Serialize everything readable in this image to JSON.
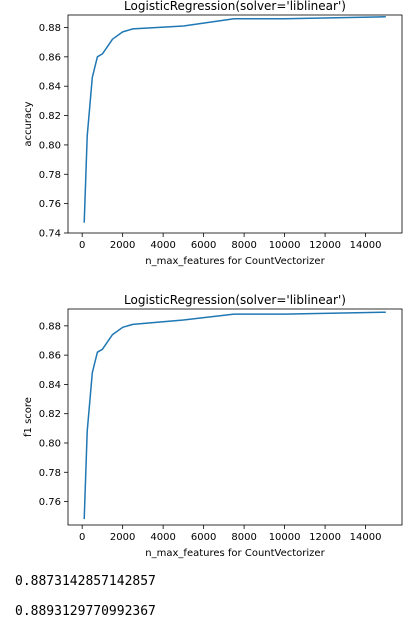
{
  "chart_data": [
    {
      "type": "line",
      "title": "LogisticRegression(solver='liblinear')",
      "xlabel": "n_max_features for CountVectorizer",
      "ylabel": "accuracy",
      "x_ticks": [
        0,
        2000,
        4000,
        6000,
        8000,
        10000,
        12000,
        14000
      ],
      "y_ticks": [
        0.74,
        0.76,
        0.78,
        0.8,
        0.82,
        0.84,
        0.86,
        0.88
      ],
      "x_tick_labels": [
        "0",
        "2000",
        "4000",
        "6000",
        "8000",
        "10000",
        "12000",
        "14000"
      ],
      "y_tick_labels": [
        "0.74",
        "0.76",
        "0.78",
        "0.80",
        "0.82",
        "0.84",
        "0.86",
        "0.88"
      ],
      "xlim": [
        -700,
        15800
      ],
      "ylim": [
        0.74,
        0.8885
      ],
      "color": "#1f77b4",
      "series": [
        {
          "x": [
            100,
            250,
            500,
            750,
            1000,
            1500,
            2000,
            2500,
            5000,
            7500,
            10000,
            15000
          ],
          "y": [
            0.747,
            0.806,
            0.846,
            0.86,
            0.862,
            0.872,
            0.877,
            0.879,
            0.881,
            0.886,
            0.886,
            0.8873
          ]
        }
      ]
    },
    {
      "type": "line",
      "title": "LogisticRegression(solver='liblinear')",
      "xlabel": "n_max_features for CountVectorizer",
      "ylabel": "f1 score",
      "x_ticks": [
        0,
        2000,
        4000,
        6000,
        8000,
        10000,
        12000,
        14000
      ],
      "y_ticks": [
        0.76,
        0.78,
        0.8,
        0.82,
        0.84,
        0.86,
        0.88
      ],
      "x_tick_labels": [
        "0",
        "2000",
        "4000",
        "6000",
        "8000",
        "10000",
        "12000",
        "14000"
      ],
      "y_tick_labels": [
        "0.76",
        "0.78",
        "0.80",
        "0.82",
        "0.84",
        "0.86",
        "0.88"
      ],
      "xlim": [
        -700,
        15800
      ],
      "ylim": [
        0.744,
        0.8915
      ],
      "color": "#1f77b4",
      "series": [
        {
          "x": [
            100,
            250,
            500,
            750,
            1000,
            1500,
            2000,
            2500,
            5000,
            7500,
            10000,
            15000
          ],
          "y": [
            0.748,
            0.808,
            0.848,
            0.862,
            0.864,
            0.874,
            0.879,
            0.881,
            0.884,
            0.888,
            0.888,
            0.8893
          ]
        }
      ]
    }
  ],
  "outputs": [
    "0.8873142857142857",
    "0.8893129770992367"
  ]
}
